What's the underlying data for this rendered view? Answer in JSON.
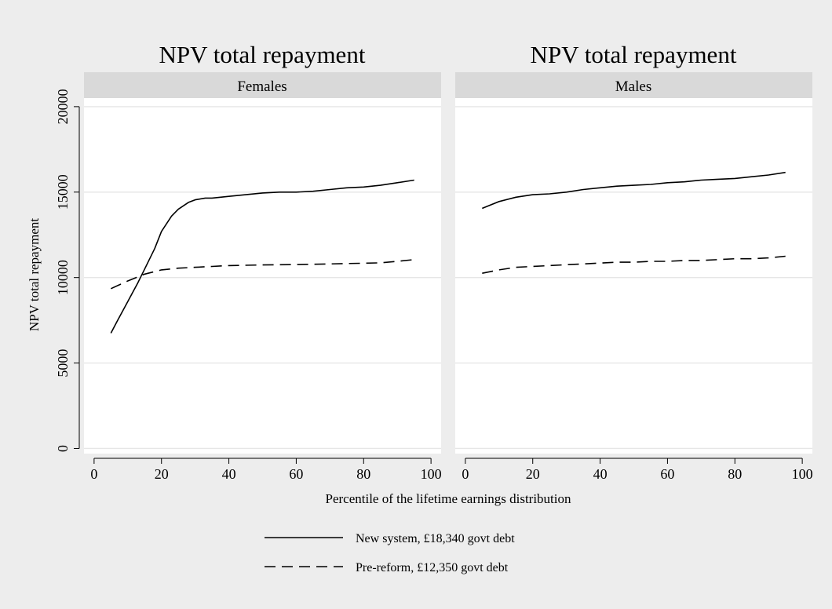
{
  "colors": {
    "outer_background": "#ededed",
    "plot_background": "#ffffff",
    "strip_background": "#d9d9d9",
    "gridline": "#e6e6e6",
    "line": "#000000"
  },
  "chart_data": [
    {
      "type": "line",
      "title": "NPV total repayment",
      "facet": "Females",
      "xlabel": "Percentile of the lifetime earnings distribution",
      "ylabel": "NPV total repayment",
      "xlim": [
        -3,
        103
      ],
      "ylim": [
        -300,
        20500
      ],
      "xticks": [
        "0",
        "20",
        "40",
        "60",
        "80",
        "100"
      ],
      "yticks": [
        "0",
        "5000",
        "10000",
        "15000",
        "20000"
      ],
      "grid": true,
      "series": [
        {
          "name": "New system, £18,340 govt debt",
          "dash": "solid",
          "x": [
            5,
            7,
            10,
            13,
            15,
            18,
            20,
            23,
            25,
            28,
            30,
            33,
            35,
            40,
            45,
            50,
            55,
            60,
            65,
            70,
            75,
            80,
            85,
            90,
            95
          ],
          "y": [
            6750,
            7500,
            8600,
            9700,
            10500,
            11700,
            12700,
            13600,
            14000,
            14400,
            14550,
            14650,
            14650,
            14750,
            14850,
            14950,
            15000,
            15000,
            15050,
            15150,
            15250,
            15300,
            15400,
            15550,
            15700
          ]
        },
        {
          "name": "Pre-reform, £12,350 govt debt",
          "dash": "dashed",
          "x": [
            5,
            10,
            15,
            20,
            25,
            30,
            35,
            40,
            45,
            50,
            55,
            60,
            65,
            70,
            75,
            80,
            85,
            90,
            95
          ],
          "y": [
            9350,
            9800,
            10200,
            10450,
            10550,
            10600,
            10650,
            10700,
            10720,
            10740,
            10750,
            10760,
            10780,
            10800,
            10820,
            10840,
            10860,
            10950,
            11050
          ]
        }
      ]
    },
    {
      "type": "line",
      "title": "NPV total repayment",
      "facet": "Males",
      "xlim": [
        -3,
        103
      ],
      "ylim": [
        -300,
        20500
      ],
      "xticks": [
        "0",
        "20",
        "40",
        "60",
        "80",
        "100"
      ],
      "grid": true,
      "series": [
        {
          "name": "New system, £18,340 govt debt",
          "dash": "solid",
          "x": [
            5,
            10,
            15,
            20,
            25,
            30,
            35,
            40,
            45,
            50,
            55,
            60,
            65,
            70,
            75,
            80,
            85,
            90,
            95
          ],
          "y": [
            14050,
            14450,
            14700,
            14850,
            14900,
            15000,
            15150,
            15250,
            15350,
            15400,
            15450,
            15550,
            15600,
            15700,
            15750,
            15800,
            15900,
            16000,
            16150
          ]
        },
        {
          "name": "Pre-reform, £12,350 govt debt",
          "dash": "dashed",
          "x": [
            5,
            10,
            15,
            20,
            25,
            30,
            35,
            40,
            45,
            50,
            55,
            60,
            65,
            70,
            75,
            80,
            85,
            90,
            95
          ],
          "y": [
            10250,
            10450,
            10600,
            10650,
            10700,
            10750,
            10800,
            10850,
            10900,
            10900,
            10950,
            10950,
            11000,
            11000,
            11050,
            11100,
            11100,
            11150,
            11250
          ]
        }
      ]
    }
  ],
  "legend": {
    "placement": "bottom-center",
    "entries": [
      {
        "label": "New system, £18,340 govt debt",
        "dash": "solid"
      },
      {
        "label": "Pre-reform, £12,350 govt debt",
        "dash": "dashed"
      }
    ]
  }
}
